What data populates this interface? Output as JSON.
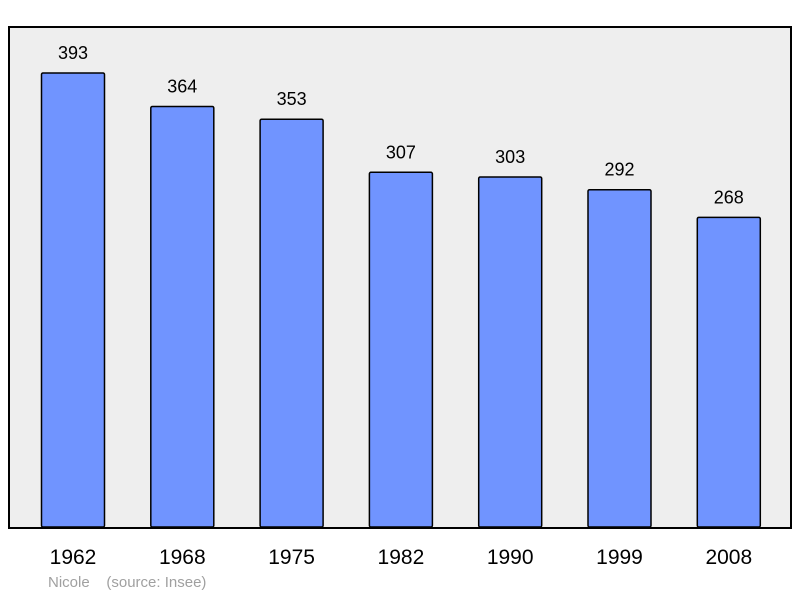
{
  "chart_data": {
    "type": "bar",
    "categories": [
      "1962",
      "1968",
      "1975",
      "1982",
      "1990",
      "1999",
      "2008"
    ],
    "values": [
      393,
      364,
      353,
      307,
      303,
      292,
      268
    ],
    "title": "",
    "xlabel": "",
    "ylabel": "",
    "ylim": [
      0,
      393
    ],
    "grid": false,
    "legend": "none",
    "colors": {
      "bar": "#7094ff",
      "plot_background": "#eeeeee",
      "border": "#000000"
    }
  },
  "footer": {
    "author": "Nicole",
    "source": "(source: Insee)"
  }
}
